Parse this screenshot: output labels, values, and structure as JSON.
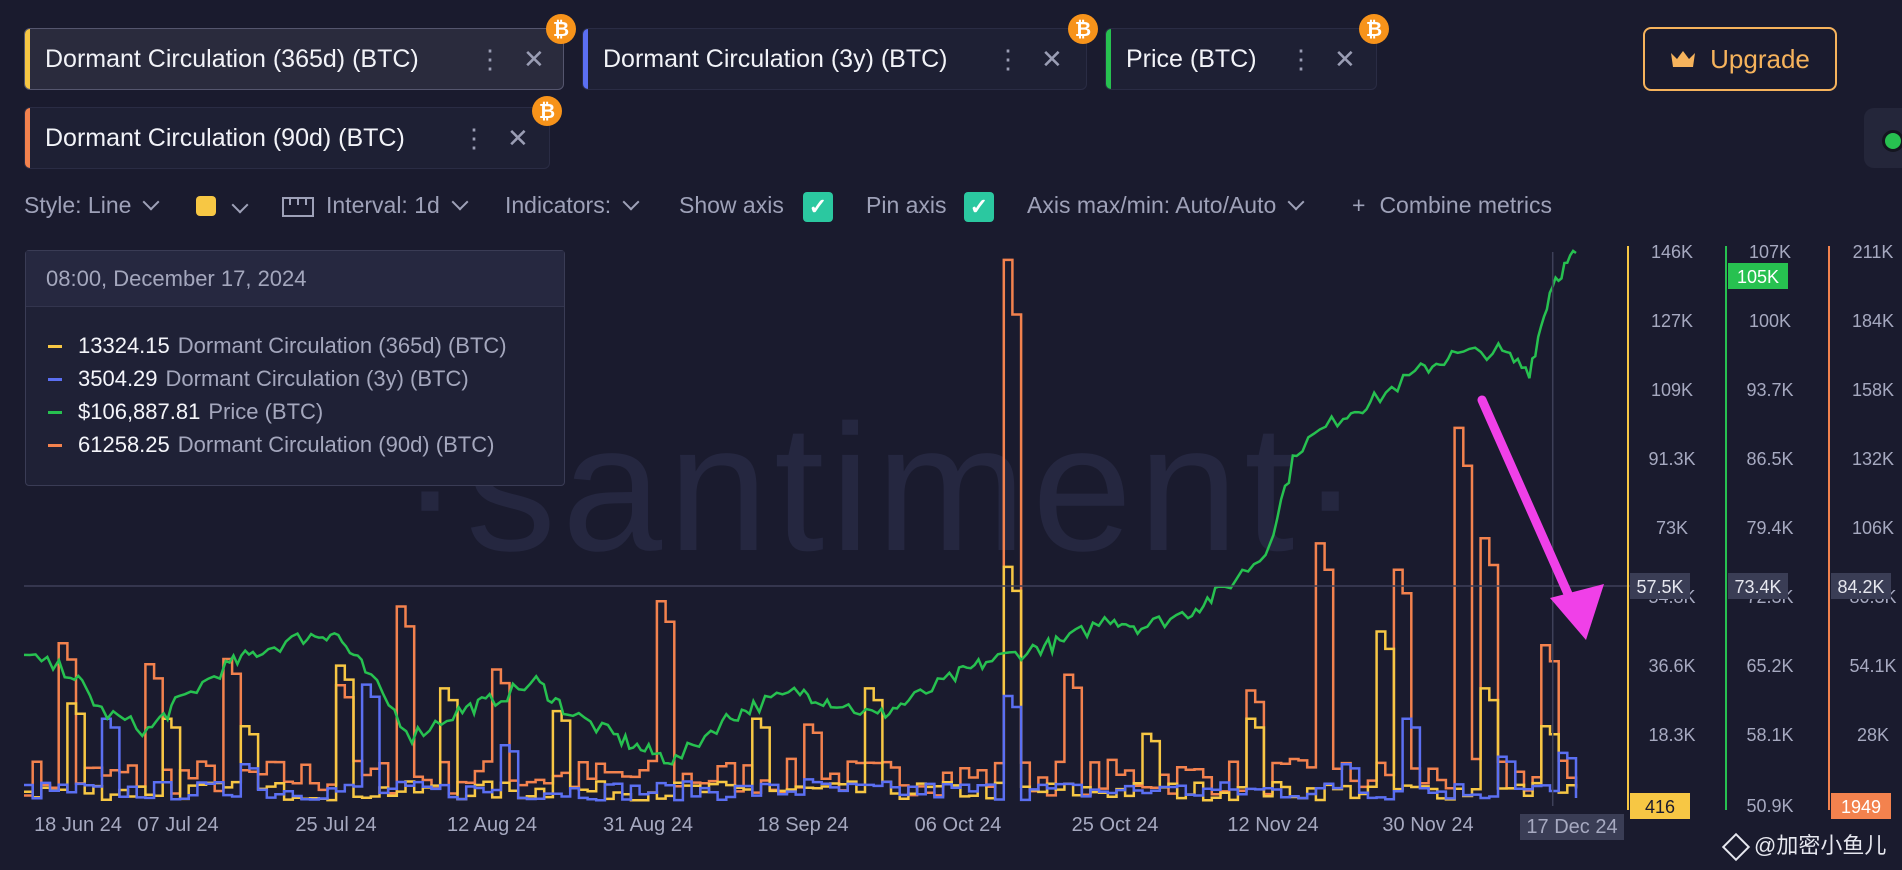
{
  "metrics": [
    {
      "label": "Dormant Circulation (365d) (BTC)",
      "color": "#f7c744"
    },
    {
      "label": "Dormant Circulation (3y) (BTC)",
      "color": "#5b6ff2"
    },
    {
      "label": "Price (BTC)",
      "color": "#27c150"
    },
    {
      "label": "Dormant Circulation (90d) (BTC)",
      "color": "#f3824e"
    }
  ],
  "upgrade_label": "Upgrade",
  "toolbar": {
    "style": "Style: Line",
    "interval": "Interval: 1d",
    "indicators": "Indicators:",
    "show_axis": "Show axis",
    "pin_axis": "Pin axis",
    "axis_maxmin": "Axis max/min: Auto/Auto",
    "combine": "Combine metrics",
    "style_color": "#f7c744"
  },
  "tooltip": {
    "date": "08:00, December 17, 2024",
    "rows": [
      {
        "value": "13324.15",
        "label": "Dormant Circulation (365d) (BTC)"
      },
      {
        "value": "3504.29",
        "label": "Dormant Circulation (3y) (BTC)"
      },
      {
        "value": "$106,887.81",
        "label": "Price (BTC)"
      },
      {
        "value": "61258.25",
        "label": "Dormant Circulation (90d) (BTC)"
      }
    ]
  },
  "watermark": "·santiment·",
  "credit": "@加密小鱼儿",
  "chart_data": {
    "type": "line",
    "x_ticks": [
      "18 Jun 24",
      "07 Jul 24",
      "25 Jul 24",
      "12 Aug 24",
      "31 Aug 24",
      "18 Sep 24",
      "06 Oct 24",
      "25 Oct 24",
      "12 Nov 24",
      "30 Nov 24",
      "17 Dec 24"
    ],
    "hover_x_label": "17 Dec 24",
    "axes": {
      "dormant_365d": {
        "ticks": [
          "146K",
          "127K",
          "109K",
          "91.3K",
          "73K",
          "54.8K",
          "36.6K",
          "18.3K"
        ],
        "current": "416",
        "hover": "57.5K",
        "color": "#f7c744"
      },
      "price": {
        "ticks": [
          "107K",
          "100K",
          "93.7K",
          "86.5K",
          "79.4K",
          "72.3K",
          "65.2K",
          "58.1K",
          "50.9K"
        ],
        "current": "105K",
        "hover": "73.4K",
        "color": "#27c150"
      },
      "dormant_90d": {
        "ticks": [
          "211K",
          "184K",
          "158K",
          "132K",
          "106K",
          "80.3K",
          "54.1K",
          "28K"
        ],
        "current": "1949",
        "hover": "84.2K",
        "color": "#f3824e"
      }
    },
    "series": [
      {
        "name": "Price (BTC)",
        "axis": "price",
        "x_fraction": [
          0,
          0.03,
          0.05,
          0.08,
          0.1,
          0.13,
          0.15,
          0.18,
          0.2,
          0.22,
          0.25,
          0.28,
          0.3,
          0.33,
          0.35,
          0.38,
          0.4,
          0.42,
          0.45,
          0.47,
          0.5,
          0.52,
          0.55,
          0.57,
          0.6,
          0.62,
          0.65,
          0.67,
          0.7,
          0.72,
          0.75,
          0.77,
          0.8,
          0.82,
          0.85,
          0.87,
          0.9,
          0.92,
          0.95,
          0.97,
          0.985,
          1
        ],
        "values": [
          66000,
          64500,
          60500,
          58500,
          61500,
          65000,
          66500,
          68000,
          68500,
          64500,
          58000,
          60500,
          61500,
          63500,
          60500,
          58000,
          56500,
          55500,
          59500,
          61000,
          62500,
          61500,
          60000,
          61500,
          64000,
          65500,
          66800,
          67500,
          70000,
          69000,
          70500,
          72500,
          76500,
          87000,
          90500,
          92000,
          95000,
          96500,
          97000,
          95000,
          104000,
          106900
        ]
      },
      {
        "name": "Dormant Circulation (365d) (BTC)",
        "axis": "dormant_365d",
        "peaks": [
          [
            0.03,
            27000
          ],
          [
            0.09,
            23000
          ],
          [
            0.14,
            21000
          ],
          [
            0.2,
            37000
          ],
          [
            0.27,
            31000
          ],
          [
            0.34,
            25000
          ],
          [
            0.47,
            23000
          ],
          [
            0.54,
            31000
          ],
          [
            0.63,
            63000
          ],
          [
            0.72,
            19000
          ],
          [
            0.79,
            23000
          ],
          [
            0.87,
            46000
          ],
          [
            0.94,
            31000
          ],
          [
            0.98,
            21000
          ]
        ],
        "current": 13324.15
      },
      {
        "name": "Dormant Circulation (3y) (BTC)",
        "axis": "dormant_365d",
        "peaks": [
          [
            0.05,
            23000
          ],
          [
            0.14,
            11000
          ],
          [
            0.22,
            32000
          ],
          [
            0.31,
            16000
          ],
          [
            0.5,
            7000
          ],
          [
            0.63,
            29000
          ],
          [
            0.73,
            5000
          ],
          [
            0.85,
            11000
          ],
          [
            0.89,
            23000
          ],
          [
            0.95,
            13000
          ],
          [
            0.99,
            14000
          ]
        ],
        "current": 3504.29
      },
      {
        "name": "Dormant Circulation (90d) (BTC)",
        "axis": "dormant_90d",
        "peaks": [
          [
            0.02,
            62000
          ],
          [
            0.08,
            54000
          ],
          [
            0.13,
            56000
          ],
          [
            0.2,
            46000
          ],
          [
            0.24,
            76000
          ],
          [
            0.3,
            52000
          ],
          [
            0.41,
            78000
          ],
          [
            0.5,
            31000
          ],
          [
            0.63,
            208000
          ],
          [
            0.67,
            50000
          ],
          [
            0.79,
            44000
          ],
          [
            0.83,
            100000
          ],
          [
            0.88,
            90000
          ],
          [
            0.92,
            144000
          ],
          [
            0.94,
            102000
          ],
          [
            0.98,
            61258
          ]
        ],
        "current": 61258.25
      }
    ]
  }
}
